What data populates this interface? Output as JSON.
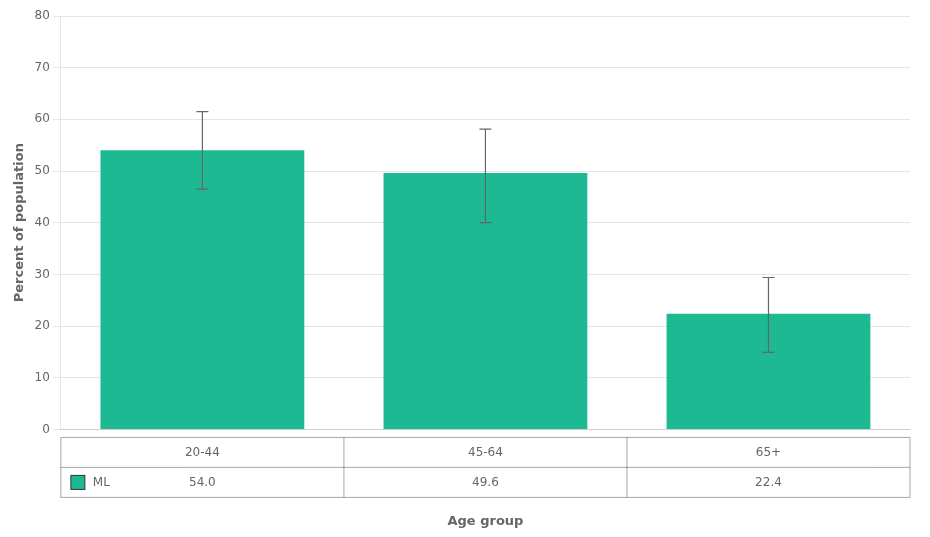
{
  "chart_data": {
    "type": "bar",
    "categories": [
      "20-44",
      "45-64",
      "65+"
    ],
    "series": [
      {
        "name": "ML",
        "color": "#1db992",
        "values": [
          54.0,
          49.6,
          22.4
        ],
        "value_labels": [
          "54.0",
          "49.6",
          "22.4"
        ],
        "error_upper": [
          7.5,
          8.5,
          7.0
        ],
        "error_lower": [
          7.5,
          9.6,
          7.5
        ]
      }
    ],
    "xlabel": "Age group",
    "ylabel": "Percent of population",
    "ylim": [
      0,
      80
    ],
    "yticks": [
      0,
      10,
      20,
      30,
      40,
      50,
      60,
      70,
      80
    ],
    "grid": true,
    "legend": "bottom",
    "data_labels": true
  }
}
